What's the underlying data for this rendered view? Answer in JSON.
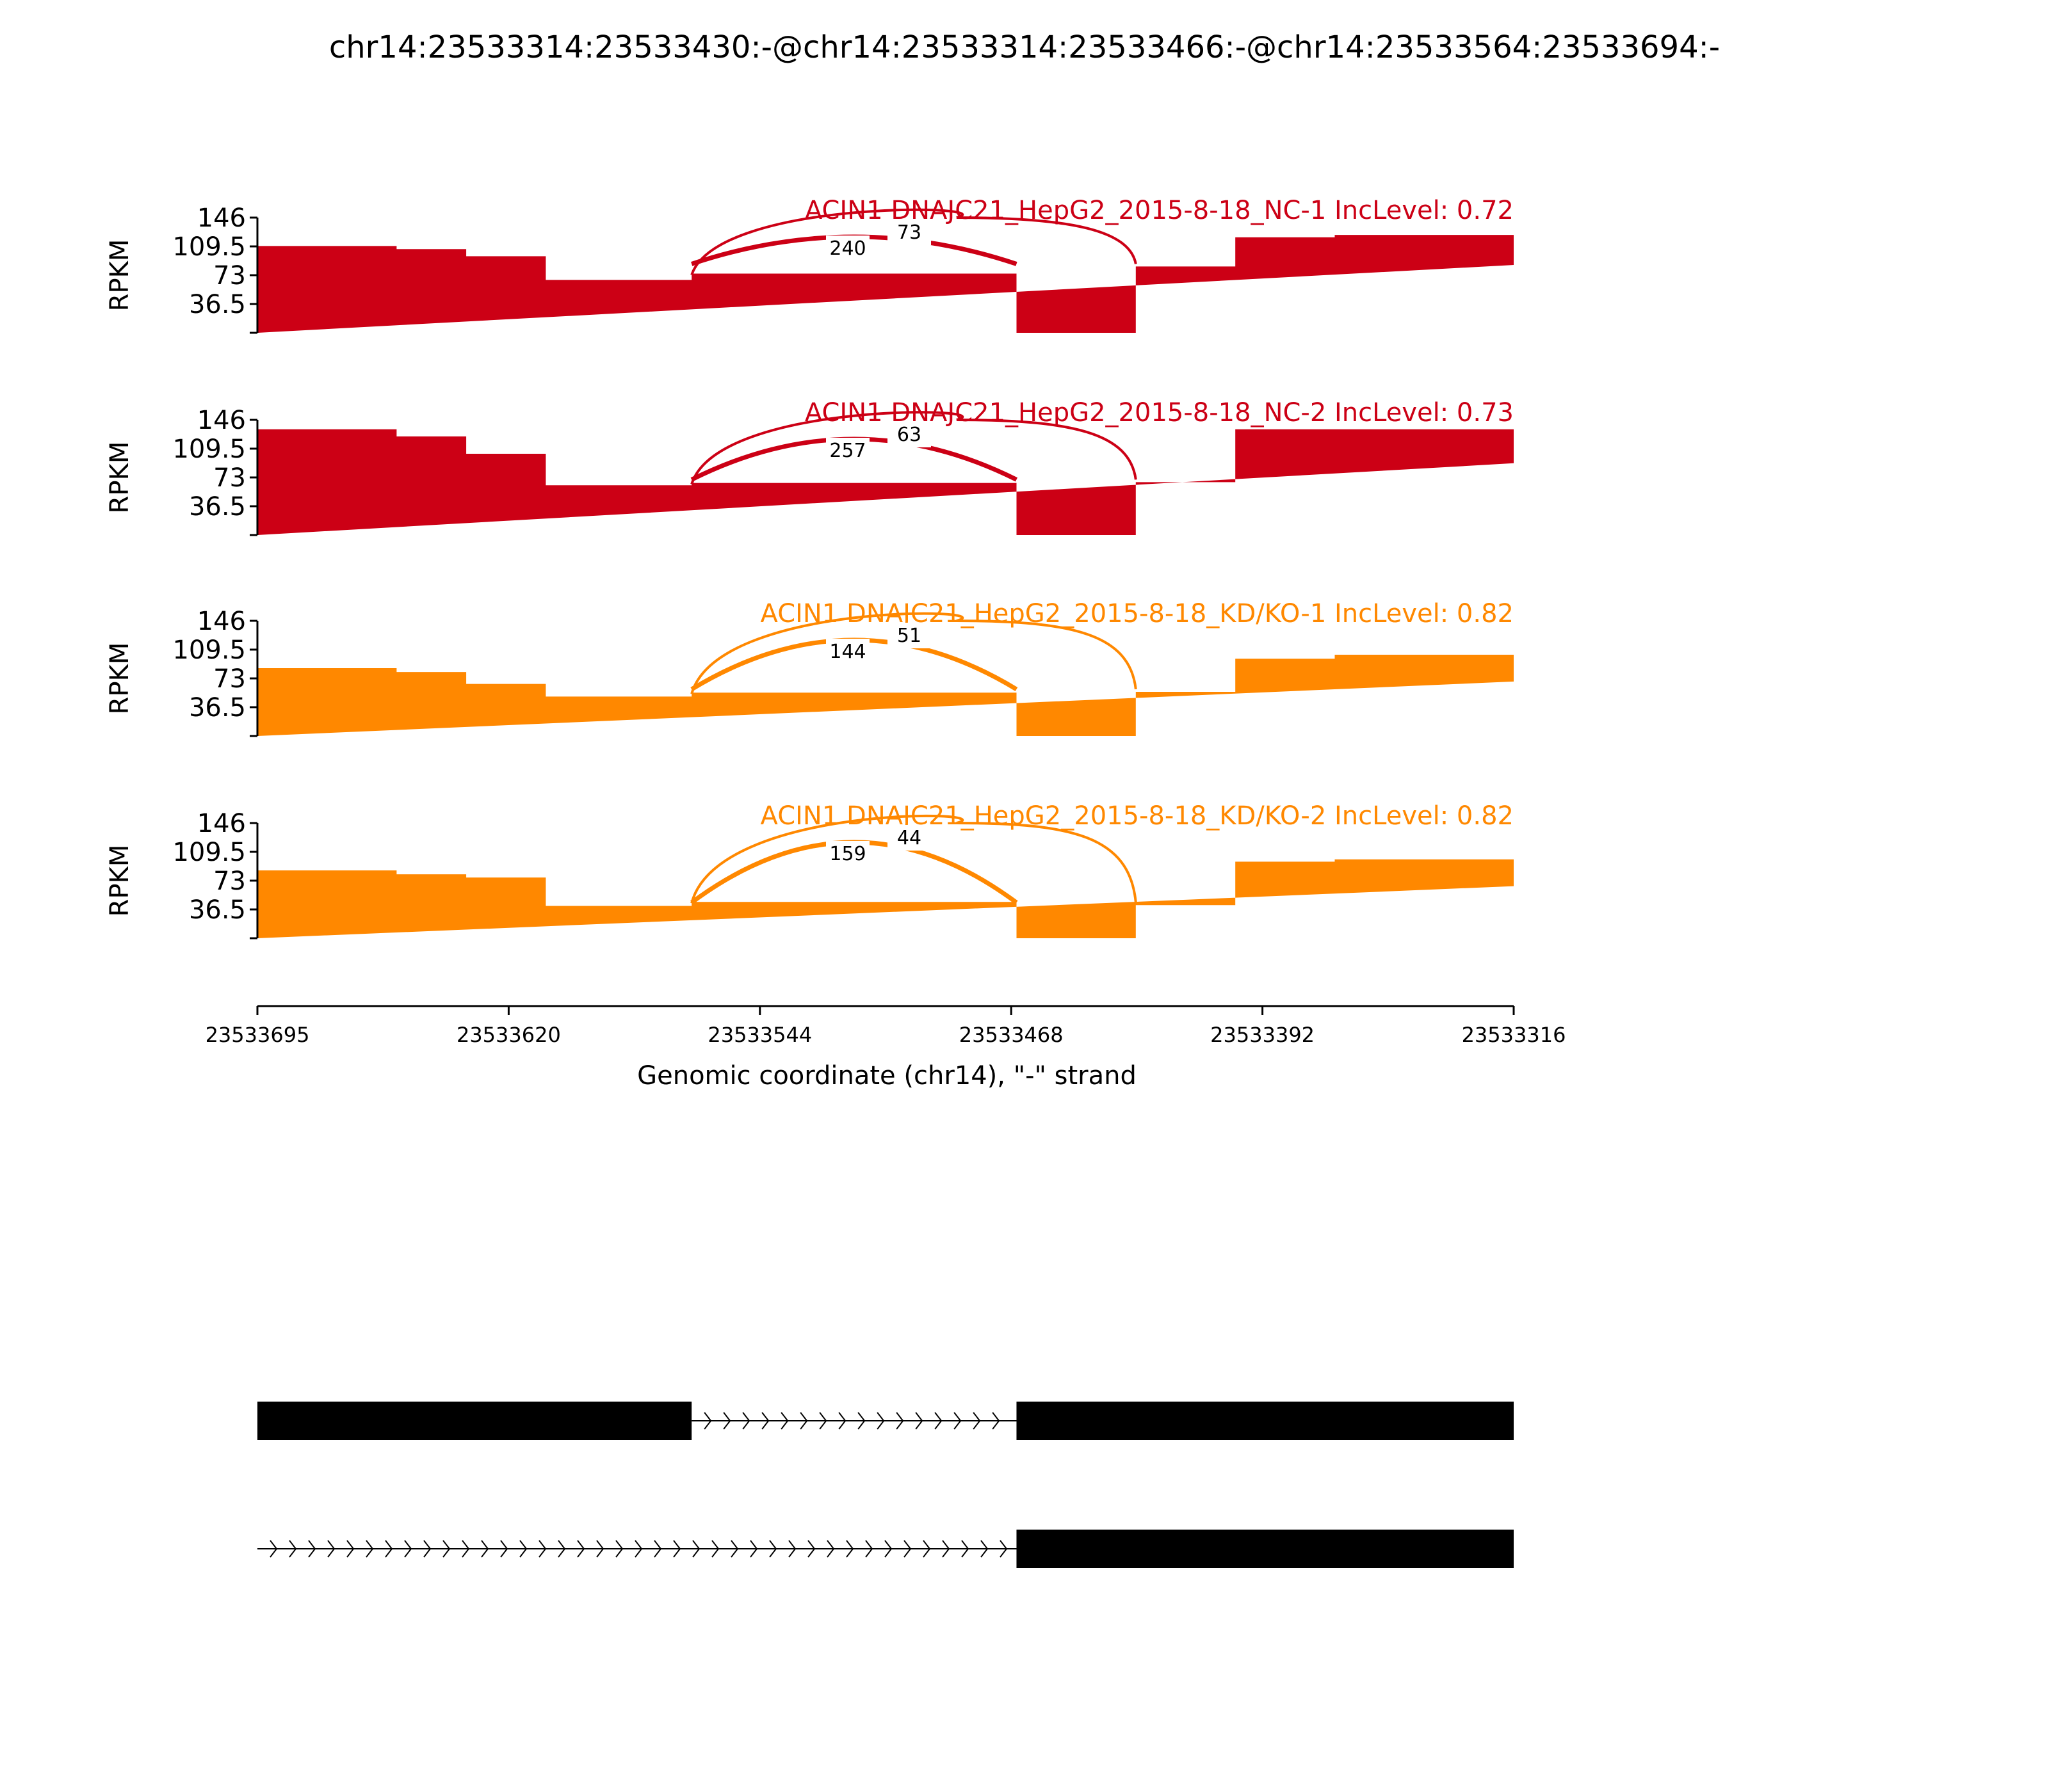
{
  "title": "chr14:23533314:23533430:-@chr14:23533314:23533466:-@chr14:23533564:23533694:-",
  "chart_data": {
    "type": "area",
    "title": "chr14:23533314:23533430:-@chr14:23533314:23533466:-@chr14:23533564:23533694:-",
    "xlabel": "Genomic coordinate (chr14), \"-\" strand",
    "ylabel": "RPKM",
    "xlim": [
      23533695,
      23533316
    ],
    "x_ticks": [
      "23533695",
      "23533620",
      "23533544",
      "23533468",
      "23533392",
      "23533316"
    ],
    "ylim": [
      0,
      146
    ],
    "y_ticks": [
      "146",
      "109.5",
      "73",
      "36.5"
    ],
    "grid": false,
    "colors": {
      "NC": "#cc0015",
      "KD": "#ff8800"
    },
    "coverage_breakpoints": [
      23533695,
      23533653,
      23533632,
      23533608,
      23533564,
      23533466,
      23533430,
      23533400,
      23533370,
      23533316
    ],
    "tracks": [
      {
        "label": "ACIN1 DNAJC21_HepG2_2015-8-18_NC-1 IncLevel: 0.72",
        "color": "#cc0015",
        "coverage": [
          110,
          106,
          97,
          67,
          75,
          0,
          84,
          121,
          124,
          86
        ],
        "junctions": [
          {
            "count": "240",
            "from": 23533564,
            "to": 23533466,
            "side": "bottom"
          },
          {
            "count": "73",
            "from": 23533564,
            "to": 23533430,
            "side": "top"
          }
        ]
      },
      {
        "label": "ACIN1 DNAJC21_HepG2_2015-8-18_NC-2 IncLevel: 0.73",
        "color": "#cc0015",
        "coverage": [
          134,
          125,
          103,
          63,
          66,
          0,
          67,
          134,
          134,
          91
        ],
        "junctions": [
          {
            "count": "257",
            "from": 23533564,
            "to": 23533466,
            "side": "bottom"
          },
          {
            "count": "63",
            "from": 23533564,
            "to": 23533430,
            "side": "top"
          }
        ]
      },
      {
        "label": "ACIN1 DNAJC21_HepG2_2015-8-18_KD/KO-1 IncLevel: 0.82",
        "color": "#ff8800",
        "coverage": [
          86,
          81,
          66,
          50,
          55,
          0,
          56,
          98,
          103,
          69
        ],
        "junctions": [
          {
            "count": "144",
            "from": 23533564,
            "to": 23533466,
            "side": "bottom"
          },
          {
            "count": "51",
            "from": 23533564,
            "to": 23533430,
            "side": "top"
          }
        ]
      },
      {
        "label": "ACIN1 DNAJC21_HepG2_2015-8-18_KD/KO-2 IncLevel: 0.82",
        "color": "#ff8800",
        "coverage": [
          86,
          81,
          77,
          41,
          46,
          0,
          42,
          97,
          100,
          66
        ],
        "junctions": [
          {
            "count": "159",
            "from": 23533564,
            "to": 23533466,
            "side": "bottom"
          },
          {
            "count": "44",
            "from": 23533564,
            "to": 23533430,
            "side": "top"
          }
        ]
      }
    ],
    "isoforms": [
      {
        "exons": [
          [
            23533695,
            23533564
          ],
          [
            23533466,
            23533316
          ]
        ],
        "intron": [
          23533564,
          23533466
        ]
      },
      {
        "exons": [
          [
            23533466,
            23533316
          ]
        ],
        "intron": [
          23533695,
          23533466
        ]
      }
    ]
  }
}
